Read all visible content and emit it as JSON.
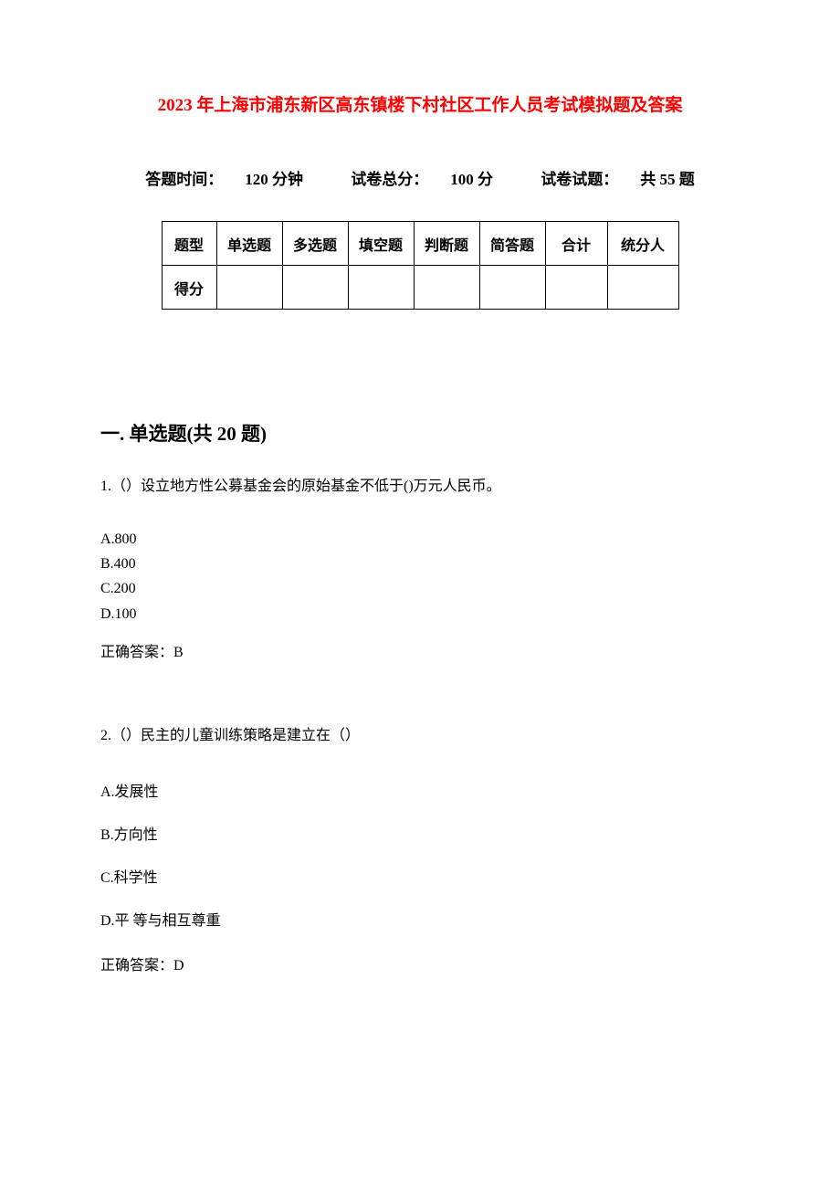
{
  "title_text": "2023 年上海市浦东新区高东镇楼下村社区工作人员考试模拟题及答案",
  "title_color": "#ff0000",
  "exam_info": {
    "time_label": "答题时间：",
    "time_value": "120 分钟",
    "total_label": "试卷总分：",
    "total_value": "100 分",
    "count_label": "试卷试题：",
    "count_value": "共 55 题"
  },
  "table": {
    "headers": [
      "题型",
      "单选题",
      "多选题",
      "填空题",
      "判断题",
      "简答题",
      "合计",
      "统分人"
    ],
    "row2_first": "得分"
  },
  "section1_title": "一. 单选题(共 20 题)",
  "q1": {
    "text": "1.（）设立地方性公募基金会的原始基金不低于()万元人民币。",
    "options": [
      "A.800",
      "B.400",
      "C.200",
      "D.100"
    ],
    "answer_label": "正确答案：",
    "answer_value": "B"
  },
  "q2": {
    "text": "2.（）民主的儿童训练策略是建立在（）",
    "options": [
      "A.发展性",
      "B.方向性",
      "C.科学性",
      "D.平  等与相互尊重"
    ],
    "answer_label": "正确答案：",
    "answer_value": "D"
  }
}
